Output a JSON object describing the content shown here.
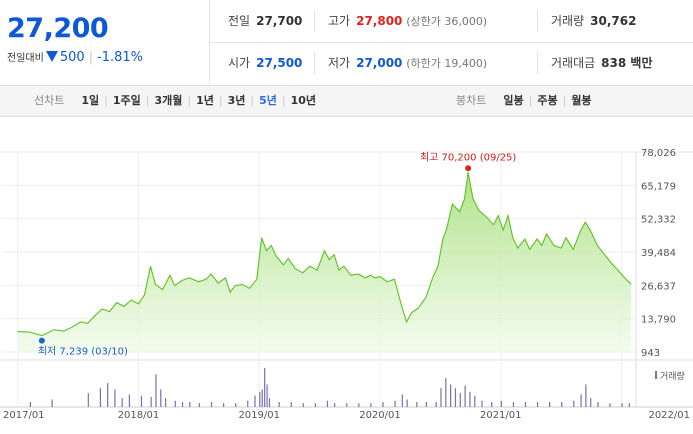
{
  "quote": {
    "price": "27,200",
    "change_label": "전일대비",
    "change": "500",
    "change_pct": "-1.81%",
    "prev_close_label": "전일",
    "prev_close": "27,700",
    "high_label": "고가",
    "high": "27,800",
    "upper_limit": "(상한가 36,000)",
    "volume_label": "거래량",
    "volume": "30,762",
    "open_label": "시가",
    "open": "27,500",
    "low_label": "저가",
    "low": "27,000",
    "lower_limit": "(하한가 19,400)",
    "amount_label": "거래대금",
    "amount": "838 백만"
  },
  "toolbar": {
    "line_title": "선차트",
    "line_periods": [
      "1일",
      "1주일",
      "3개월",
      "1년",
      "3년",
      "5년",
      "10년"
    ],
    "active_period": "5년",
    "candle_title": "봉차트",
    "candle_periods": [
      "일봉",
      "주봉",
      "월봉"
    ]
  },
  "colors": {
    "accent_blue": "#0e58d6",
    "up_red": "#e2231a",
    "area_green": "#8fd36b",
    "volume_purple": "#7a6fb3"
  },
  "chart_data": {
    "type": "area",
    "x_ticks": [
      "2017/01",
      "2018/01",
      "2019/01",
      "2020/01",
      "2021/01",
      "2022/01"
    ],
    "y_ticks": [
      "78,026",
      "65,179",
      "52,332",
      "39,484",
      "26,637",
      "13,790",
      "943"
    ],
    "ylim": [
      943,
      78026
    ],
    "grid": true,
    "max_label": "최고 70,200 (09/25)",
    "min_label": "최저 7,239 (03/10)",
    "volume_legend": "거래량",
    "series": [
      {
        "values": [
          [
            2017.0,
            8800
          ],
          [
            2017.1,
            8600
          ],
          [
            2017.2,
            7239
          ],
          [
            2017.3,
            9500
          ],
          [
            2017.38,
            9000
          ],
          [
            2017.45,
            10500
          ],
          [
            2017.52,
            12500
          ],
          [
            2017.58,
            12000
          ],
          [
            2017.64,
            15000
          ],
          [
            2017.7,
            17500
          ],
          [
            2017.76,
            16500
          ],
          [
            2017.82,
            20000
          ],
          [
            2017.88,
            18500
          ],
          [
            2017.94,
            21000
          ],
          [
            2018.0,
            19500
          ],
          [
            2018.05,
            23000
          ],
          [
            2018.1,
            34000
          ],
          [
            2018.14,
            27000
          ],
          [
            2018.2,
            25000
          ],
          [
            2018.26,
            30500
          ],
          [
            2018.3,
            26500
          ],
          [
            2018.36,
            28500
          ],
          [
            2018.42,
            29500
          ],
          [
            2018.5,
            28000
          ],
          [
            2018.56,
            29000
          ],
          [
            2018.6,
            31000
          ],
          [
            2018.66,
            27500
          ],
          [
            2018.72,
            29500
          ],
          [
            2018.76,
            24000
          ],
          [
            2018.8,
            26500
          ],
          [
            2018.86,
            27000
          ],
          [
            2018.92,
            25500
          ],
          [
            2018.98,
            29000
          ],
          [
            2019.02,
            45000
          ],
          [
            2019.06,
            40000
          ],
          [
            2019.1,
            42000
          ],
          [
            2019.14,
            38000
          ],
          [
            2019.2,
            34500
          ],
          [
            2019.24,
            37000
          ],
          [
            2019.3,
            33000
          ],
          [
            2019.36,
            31500
          ],
          [
            2019.42,
            34000
          ],
          [
            2019.48,
            32500
          ],
          [
            2019.54,
            40000
          ],
          [
            2019.58,
            36500
          ],
          [
            2019.62,
            38500
          ],
          [
            2019.66,
            32500
          ],
          [
            2019.7,
            34000
          ],
          [
            2019.76,
            30500
          ],
          [
            2019.82,
            31000
          ],
          [
            2019.88,
            29500
          ],
          [
            2019.92,
            30500
          ],
          [
            2019.96,
            29500
          ],
          [
            2020.0,
            30000
          ],
          [
            2020.06,
            28000
          ],
          [
            2020.12,
            29000
          ],
          [
            2020.18,
            18500
          ],
          [
            2020.22,
            12500
          ],
          [
            2020.26,
            16000
          ],
          [
            2020.32,
            18000
          ],
          [
            2020.38,
            22000
          ],
          [
            2020.44,
            30000
          ],
          [
            2020.48,
            34000
          ],
          [
            2020.52,
            44500
          ],
          [
            2020.55,
            48000
          ],
          [
            2020.6,
            58000
          ],
          [
            2020.66,
            55000
          ],
          [
            2020.7,
            60000
          ],
          [
            2020.73,
            70200
          ],
          [
            2020.77,
            60000
          ],
          [
            2020.82,
            55500
          ],
          [
            2020.88,
            53000
          ],
          [
            2020.94,
            50000
          ],
          [
            2020.98,
            53500
          ],
          [
            2021.02,
            48000
          ],
          [
            2021.06,
            53500
          ],
          [
            2021.1,
            45000
          ],
          [
            2021.14,
            41000
          ],
          [
            2021.2,
            44500
          ],
          [
            2021.24,
            40500
          ],
          [
            2021.3,
            44500
          ],
          [
            2021.34,
            42000
          ],
          [
            2021.38,
            46500
          ],
          [
            2021.44,
            42000
          ],
          [
            2021.5,
            41000
          ],
          [
            2021.54,
            45000
          ],
          [
            2021.6,
            40500
          ],
          [
            2021.66,
            47500
          ],
          [
            2021.7,
            51000
          ],
          [
            2021.74,
            48000
          ],
          [
            2021.8,
            42000
          ],
          [
            2021.86,
            38500
          ],
          [
            2021.92,
            35000
          ],
          [
            2021.98,
            32000
          ],
          [
            2022.04,
            28800
          ],
          [
            2022.08,
            27200
          ]
        ]
      }
    ],
    "volume": [
      [
        2017.1,
        8
      ],
      [
        2017.28,
        12
      ],
      [
        2017.58,
        22
      ],
      [
        2017.68,
        30
      ],
      [
        2017.74,
        38
      ],
      [
        2017.8,
        28
      ],
      [
        2017.86,
        14
      ],
      [
        2017.92,
        20
      ],
      [
        2018.02,
        18
      ],
      [
        2018.1,
        16
      ],
      [
        2018.14,
        52
      ],
      [
        2018.18,
        28
      ],
      [
        2018.22,
        14
      ],
      [
        2018.3,
        10
      ],
      [
        2018.36,
        8
      ],
      [
        2018.42,
        8
      ],
      [
        2018.5,
        6
      ],
      [
        2018.6,
        8
      ],
      [
        2018.7,
        6
      ],
      [
        2018.8,
        6
      ],
      [
        2018.9,
        10
      ],
      [
        2018.96,
        18
      ],
      [
        2019.0,
        24
      ],
      [
        2019.02,
        28
      ],
      [
        2019.04,
        62
      ],
      [
        2019.06,
        36
      ],
      [
        2019.08,
        14
      ],
      [
        2019.16,
        8
      ],
      [
        2019.26,
        8
      ],
      [
        2019.36,
        6
      ],
      [
        2019.46,
        6
      ],
      [
        2019.56,
        10
      ],
      [
        2019.62,
        6
      ],
      [
        2019.72,
        6
      ],
      [
        2019.82,
        6
      ],
      [
        2019.92,
        6
      ],
      [
        2020.02,
        8
      ],
      [
        2020.12,
        10
      ],
      [
        2020.18,
        20
      ],
      [
        2020.22,
        12
      ],
      [
        2020.3,
        8
      ],
      [
        2020.38,
        8
      ],
      [
        2020.46,
        8
      ],
      [
        2020.5,
        30
      ],
      [
        2020.54,
        46
      ],
      [
        2020.58,
        36
      ],
      [
        2020.62,
        30
      ],
      [
        2020.66,
        22
      ],
      [
        2020.7,
        34
      ],
      [
        2020.74,
        24
      ],
      [
        2020.78,
        18
      ],
      [
        2020.84,
        10
      ],
      [
        2020.92,
        8
      ],
      [
        2021.0,
        10
      ],
      [
        2021.1,
        8
      ],
      [
        2021.2,
        8
      ],
      [
        2021.3,
        8
      ],
      [
        2021.4,
        8
      ],
      [
        2021.5,
        8
      ],
      [
        2021.6,
        10
      ],
      [
        2021.66,
        20
      ],
      [
        2021.7,
        36
      ],
      [
        2021.74,
        14
      ],
      [
        2021.8,
        8
      ],
      [
        2021.9,
        6
      ],
      [
        2022.0,
        6
      ],
      [
        2022.06,
        6
      ]
    ]
  }
}
